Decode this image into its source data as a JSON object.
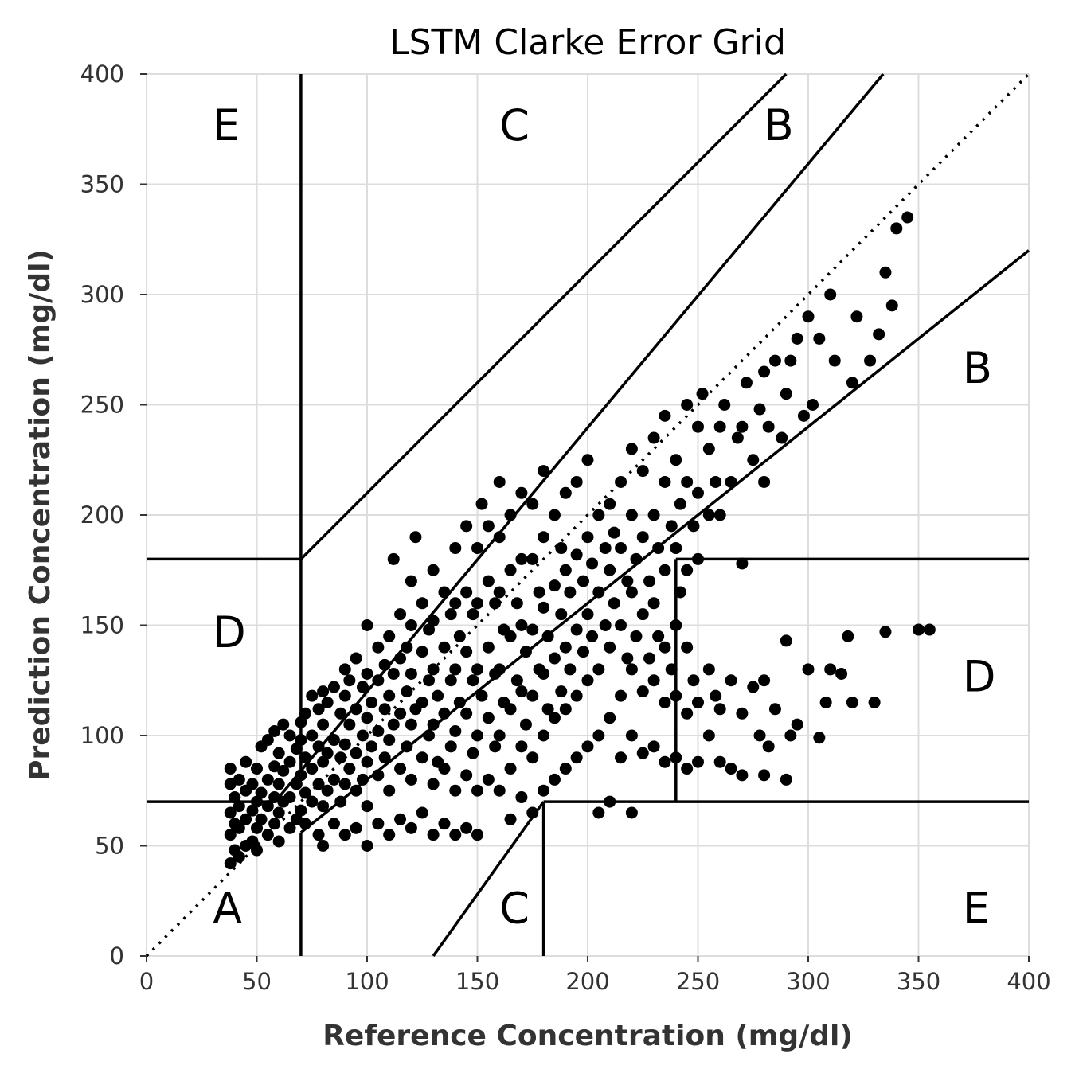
{
  "chart_data": {
    "type": "scatter",
    "title": "LSTM Clarke Error Grid",
    "xlabel": "Reference Concentration (mg/dl)",
    "ylabel": "Prediction Concentration (mg/dl)",
    "xlim": [
      0,
      400
    ],
    "ylim": [
      0,
      400
    ],
    "x_ticks": [
      0,
      50,
      100,
      150,
      200,
      250,
      300,
      350,
      400
    ],
    "y_ticks": [
      0,
      50,
      100,
      150,
      200,
      250,
      300,
      350,
      400
    ],
    "grid": true,
    "point_color": "#000000",
    "zone_labels": [
      {
        "text": "E",
        "x": 30,
        "y": 370
      },
      {
        "text": "C",
        "x": 160,
        "y": 370
      },
      {
        "text": "B",
        "x": 280,
        "y": 370
      },
      {
        "text": "B",
        "x": 370,
        "y": 260
      },
      {
        "text": "D",
        "x": 30,
        "y": 140
      },
      {
        "text": "D",
        "x": 370,
        "y": 120
      },
      {
        "text": "A",
        "x": 30,
        "y": 15
      },
      {
        "text": "C",
        "x": 160,
        "y": 15
      },
      {
        "text": "E",
        "x": 370,
        "y": 15
      }
    ],
    "zone_lines": [
      [
        [
          0,
          0
        ],
        [
          400,
          400
        ]
      ],
      [
        [
          0,
          70
        ],
        [
          58.33,
          70
        ]
      ],
      [
        [
          70,
          84
        ],
        [
          70,
          400
        ]
      ],
      [
        [
          70,
          0
        ],
        [
          70,
          56
        ]
      ],
      [
        [
          0,
          180
        ],
        [
          70,
          180
        ]
      ],
      [
        [
          70,
          180
        ],
        [
          290,
          400
        ]
      ],
      [
        [
          58.33,
          70
        ],
        [
          70,
          84
        ]
      ],
      [
        [
          70,
          56
        ],
        [
          400,
          320
        ]
      ],
      [
        [
          130,
          0
        ],
        [
          180,
          70
        ]
      ],
      [
        [
          180,
          0
        ],
        [
          180,
          70
        ]
      ],
      [
        [
          180,
          70
        ],
        [
          400,
          70
        ]
      ],
      [
        [
          240,
          70
        ],
        [
          240,
          180
        ]
      ],
      [
        [
          240,
          180
        ],
        [
          400,
          180
        ]
      ],
      [
        [
          70,
          84
        ],
        [
          334,
          400
        ]
      ]
    ],
    "points": [
      [
        38,
        42
      ],
      [
        38,
        55
      ],
      [
        38,
        65
      ],
      [
        38,
        78
      ],
      [
        38,
        85
      ],
      [
        40,
        48
      ],
      [
        40,
        60
      ],
      [
        40,
        72
      ],
      [
        42,
        45
      ],
      [
        42,
        58
      ],
      [
        42,
        68
      ],
      [
        42,
        80
      ],
      [
        45,
        50
      ],
      [
        45,
        62
      ],
      [
        45,
        75
      ],
      [
        45,
        88
      ],
      [
        48,
        52
      ],
      [
        48,
        66
      ],
      [
        48,
        78
      ],
      [
        50,
        48
      ],
      [
        50,
        58
      ],
      [
        50,
        70
      ],
      [
        50,
        85
      ],
      [
        52,
        62
      ],
      [
        52,
        74
      ],
      [
        52,
        95
      ],
      [
        55,
        55
      ],
      [
        55,
        68
      ],
      [
        55,
        80
      ],
      [
        55,
        98
      ],
      [
        58,
        60
      ],
      [
        58,
        72
      ],
      [
        58,
        86
      ],
      [
        58,
        102
      ],
      [
        60,
        52
      ],
      [
        60,
        65
      ],
      [
        60,
        78
      ],
      [
        60,
        92
      ],
      [
        62,
        105
      ],
      [
        62,
        70
      ],
      [
        62,
        84
      ],
      [
        65,
        58
      ],
      [
        65,
        72
      ],
      [
        65,
        88
      ],
      [
        65,
        100
      ],
      [
        68,
        62
      ],
      [
        68,
        78
      ],
      [
        68,
        94
      ],
      [
        70,
        66
      ],
      [
        70,
        82
      ],
      [
        70,
        98
      ],
      [
        70,
        106
      ],
      [
        72,
        60
      ],
      [
        72,
        74
      ],
      [
        72,
        90
      ],
      [
        72,
        110
      ],
      [
        75,
        70
      ],
      [
        75,
        85
      ],
      [
        75,
        100
      ],
      [
        75,
        118
      ],
      [
        78,
        55
      ],
      [
        78,
        78
      ],
      [
        78,
        95
      ],
      [
        78,
        112
      ],
      [
        80,
        50
      ],
      [
        80,
        68
      ],
      [
        80,
        88
      ],
      [
        80,
        105
      ],
      [
        80,
        120
      ],
      [
        82,
        75
      ],
      [
        82,
        92
      ],
      [
        82,
        115
      ],
      [
        85,
        60
      ],
      [
        85,
        80
      ],
      [
        85,
        98
      ],
      [
        85,
        122
      ],
      [
        88,
        70
      ],
      [
        88,
        90
      ],
      [
        88,
        110
      ],
      [
        90,
        55
      ],
      [
        90,
        78
      ],
      [
        90,
        96
      ],
      [
        90,
        118
      ],
      [
        90,
        130
      ],
      [
        92,
        85
      ],
      [
        92,
        105
      ],
      [
        92,
        125
      ],
      [
        95,
        58
      ],
      [
        95,
        75
      ],
      [
        95,
        92
      ],
      [
        95,
        112
      ],
      [
        95,
        135
      ],
      [
        98,
        80
      ],
      [
        98,
        100
      ],
      [
        98,
        122
      ],
      [
        100,
        50
      ],
      [
        100,
        68
      ],
      [
        100,
        88
      ],
      [
        100,
        108
      ],
      [
        100,
        128
      ],
      [
        100,
        150
      ],
      [
        102,
        95
      ],
      [
        102,
        115
      ],
      [
        105,
        60
      ],
      [
        105,
        82
      ],
      [
        105,
        102
      ],
      [
        105,
        125
      ],
      [
        105,
        140
      ],
      [
        108,
        90
      ],
      [
        108,
        112
      ],
      [
        108,
        132
      ],
      [
        110,
        55
      ],
      [
        110,
        75
      ],
      [
        110,
        98
      ],
      [
        110,
        118
      ],
      [
        110,
        145
      ],
      [
        112,
        180
      ],
      [
        112,
        105
      ],
      [
        112,
        128
      ],
      [
        115,
        62
      ],
      [
        115,
        85
      ],
      [
        115,
        110
      ],
      [
        115,
        135
      ],
      [
        115,
        155
      ],
      [
        118,
        95
      ],
      [
        118,
        120
      ],
      [
        118,
        140
      ],
      [
        120,
        58
      ],
      [
        120,
        80
      ],
      [
        120,
        105
      ],
      [
        120,
        128
      ],
      [
        120,
        150
      ],
      [
        120,
        170
      ],
      [
        122,
        190
      ],
      [
        122,
        112
      ],
      [
        125,
        65
      ],
      [
        125,
        90
      ],
      [
        125,
        115
      ],
      [
        125,
        138
      ],
      [
        125,
        160
      ],
      [
        128,
        100
      ],
      [
        128,
        125
      ],
      [
        128,
        148
      ],
      [
        130,
        55
      ],
      [
        130,
        78
      ],
      [
        130,
        105
      ],
      [
        130,
        130
      ],
      [
        130,
        152
      ],
      [
        130,
        175
      ],
      [
        132,
        88
      ],
      [
        132,
        118
      ],
      [
        135,
        60
      ],
      [
        135,
        85
      ],
      [
        135,
        110
      ],
      [
        135,
        140
      ],
      [
        135,
        165
      ],
      [
        138,
        95
      ],
      [
        138,
        125
      ],
      [
        138,
        155
      ],
      [
        140,
        55
      ],
      [
        140,
        75
      ],
      [
        140,
        102
      ],
      [
        140,
        130
      ],
      [
        140,
        160
      ],
      [
        140,
        185
      ],
      [
        142,
        115
      ],
      [
        142,
        145
      ],
      [
        145,
        58
      ],
      [
        145,
        82
      ],
      [
        145,
        110
      ],
      [
        145,
        138
      ],
      [
        145,
        165
      ],
      [
        145,
        195
      ],
      [
        148,
        92
      ],
      [
        148,
        125
      ],
      [
        148,
        155
      ],
      [
        150,
        55
      ],
      [
        150,
        75
      ],
      [
        150,
        100
      ],
      [
        150,
        130
      ],
      [
        150,
        160
      ],
      [
        150,
        185
      ],
      [
        152,
        205
      ],
      [
        152,
        118
      ],
      [
        155,
        80
      ],
      [
        155,
        108
      ],
      [
        155,
        140
      ],
      [
        155,
        170
      ],
      [
        155,
        195
      ],
      [
        158,
        95
      ],
      [
        158,
        128
      ],
      [
        158,
        160
      ],
      [
        160,
        75
      ],
      [
        160,
        100
      ],
      [
        160,
        130
      ],
      [
        160,
        165
      ],
      [
        160,
        190
      ],
      [
        160,
        215
      ],
      [
        162,
        115
      ],
      [
        162,
        148
      ],
      [
        165,
        62
      ],
      [
        165,
        85
      ],
      [
        165,
        112
      ],
      [
        165,
        145
      ],
      [
        165,
        175
      ],
      [
        165,
        200
      ],
      [
        168,
        125
      ],
      [
        168,
        160
      ],
      [
        170,
        72
      ],
      [
        170,
        95
      ],
      [
        170,
        120
      ],
      [
        170,
        150
      ],
      [
        170,
        180
      ],
      [
        170,
        210
      ],
      [
        172,
        105
      ],
      [
        172,
        138
      ],
      [
        175,
        65
      ],
      [
        175,
        90
      ],
      [
        175,
        118
      ],
      [
        175,
        148
      ],
      [
        175,
        180
      ],
      [
        175,
        205
      ],
      [
        178,
        130
      ],
      [
        178,
        165
      ],
      [
        180,
        75
      ],
      [
        180,
        100
      ],
      [
        180,
        128
      ],
      [
        180,
        158
      ],
      [
        180,
        190
      ],
      [
        180,
        220
      ],
      [
        182,
        112
      ],
      [
        182,
        145
      ],
      [
        185,
        80
      ],
      [
        185,
        108
      ],
      [
        185,
        135
      ],
      [
        185,
        168
      ],
      [
        185,
        200
      ],
      [
        188,
        120
      ],
      [
        188,
        155
      ],
      [
        188,
        185
      ],
      [
        190,
        85
      ],
      [
        190,
        112
      ],
      [
        190,
        140
      ],
      [
        190,
        175
      ],
      [
        190,
        210
      ],
      [
        192,
        130
      ],
      [
        192,
        165
      ],
      [
        195,
        90
      ],
      [
        195,
        118
      ],
      [
        195,
        148
      ],
      [
        195,
        182
      ],
      [
        195,
        215
      ],
      [
        198,
        138
      ],
      [
        198,
        170
      ],
      [
        200,
        95
      ],
      [
        200,
        125
      ],
      [
        200,
        155
      ],
      [
        200,
        190
      ],
      [
        200,
        225
      ],
      [
        202,
        145
      ],
      [
        202,
        178
      ],
      [
        205,
        65
      ],
      [
        205,
        100
      ],
      [
        205,
        130
      ],
      [
        205,
        165
      ],
      [
        205,
        200
      ],
      [
        208,
        150
      ],
      [
        208,
        185
      ],
      [
        210,
        70
      ],
      [
        210,
        108
      ],
      [
        210,
        140
      ],
      [
        210,
        175
      ],
      [
        210,
        205
      ],
      [
        212,
        160
      ],
      [
        212,
        192
      ],
      [
        215,
        90
      ],
      [
        215,
        118
      ],
      [
        215,
        150
      ],
      [
        215,
        185
      ],
      [
        215,
        215
      ],
      [
        218,
        135
      ],
      [
        218,
        170
      ],
      [
        220,
        65
      ],
      [
        220,
        100
      ],
      [
        220,
        130
      ],
      [
        220,
        165
      ],
      [
        220,
        200
      ],
      [
        220,
        230
      ],
      [
        222,
        145
      ],
      [
        222,
        180
      ],
      [
        225,
        92
      ],
      [
        225,
        120
      ],
      [
        225,
        155
      ],
      [
        225,
        190
      ],
      [
        225,
        220
      ],
      [
        228,
        135
      ],
      [
        228,
        170
      ],
      [
        230,
        95
      ],
      [
        230,
        125
      ],
      [
        230,
        160
      ],
      [
        230,
        200
      ],
      [
        230,
        235
      ],
      [
        232,
        145
      ],
      [
        232,
        185
      ],
      [
        235,
        88
      ],
      [
        235,
        115
      ],
      [
        235,
        140
      ],
      [
        235,
        175
      ],
      [
        235,
        215
      ],
      [
        235,
        245
      ],
      [
        238,
        130
      ],
      [
        238,
        195
      ],
      [
        240,
        90
      ],
      [
        240,
        118
      ],
      [
        240,
        150
      ],
      [
        240,
        185
      ],
      [
        240,
        225
      ],
      [
        242,
        165
      ],
      [
        242,
        205
      ],
      [
        245,
        85
      ],
      [
        245,
        110
      ],
      [
        245,
        140
      ],
      [
        245,
        175
      ],
      [
        245,
        215
      ],
      [
        245,
        250
      ],
      [
        248,
        125
      ],
      [
        248,
        195
      ],
      [
        250,
        88
      ],
      [
        250,
        115
      ],
      [
        250,
        180
      ],
      [
        250,
        210
      ],
      [
        250,
        240
      ],
      [
        252,
        255
      ],
      [
        255,
        100
      ],
      [
        255,
        130
      ],
      [
        255,
        200
      ],
      [
        255,
        230
      ],
      [
        258,
        118
      ],
      [
        258,
        215
      ],
      [
        260,
        88
      ],
      [
        260,
        112
      ],
      [
        260,
        200
      ],
      [
        260,
        240
      ],
      [
        262,
        250
      ],
      [
        265,
        85
      ],
      [
        265,
        125
      ],
      [
        265,
        215
      ],
      [
        268,
        235
      ],
      [
        270,
        82
      ],
      [
        270,
        110
      ],
      [
        270,
        178
      ],
      [
        270,
        240
      ],
      [
        272,
        260
      ],
      [
        275,
        122
      ],
      [
        275,
        225
      ],
      [
        278,
        100
      ],
      [
        278,
        248
      ],
      [
        280,
        82
      ],
      [
        280,
        125
      ],
      [
        280,
        215
      ],
      [
        280,
        265
      ],
      [
        282,
        95
      ],
      [
        282,
        240
      ],
      [
        285,
        112
      ],
      [
        285,
        270
      ],
      [
        288,
        235
      ],
      [
        290,
        80
      ],
      [
        290,
        143
      ],
      [
        290,
        255
      ],
      [
        292,
        100
      ],
      [
        292,
        270
      ],
      [
        295,
        105
      ],
      [
        295,
        280
      ],
      [
        298,
        245
      ],
      [
        300,
        130
      ],
      [
        300,
        290
      ],
      [
        302,
        250
      ],
      [
        305,
        99
      ],
      [
        305,
        280
      ],
      [
        308,
        115
      ],
      [
        310,
        130
      ],
      [
        310,
        300
      ],
      [
        312,
        270
      ],
      [
        315,
        128
      ],
      [
        318,
        145
      ],
      [
        320,
        115
      ],
      [
        320,
        260
      ],
      [
        322,
        290
      ],
      [
        328,
        270
      ],
      [
        330,
        115
      ],
      [
        332,
        282
      ],
      [
        335,
        147
      ],
      [
        335,
        310
      ],
      [
        338,
        295
      ],
      [
        340,
        330
      ],
      [
        345,
        335
      ],
      [
        350,
        148
      ],
      [
        355,
        148
      ]
    ]
  }
}
